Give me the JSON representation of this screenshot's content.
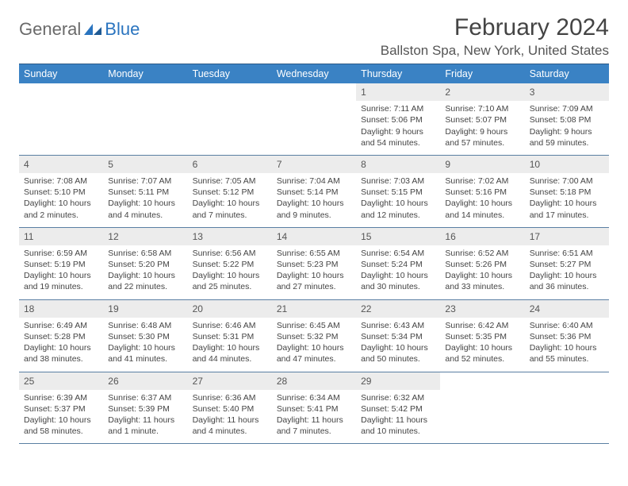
{
  "logo": {
    "text1": "General",
    "text2": "Blue"
  },
  "title": "February 2024",
  "location": "Ballston Spa, New York, United States",
  "colors": {
    "header_bg": "#3a82c4",
    "header_text": "#ffffff",
    "rule": "#2e5b85",
    "daynum_bg": "#ececec",
    "page_bg": "#ffffff",
    "text": "#444444"
  },
  "weekdays": [
    "Sunday",
    "Monday",
    "Tuesday",
    "Wednesday",
    "Thursday",
    "Friday",
    "Saturday"
  ],
  "weeks": [
    {
      "nums": [
        "",
        "",
        "",
        "",
        "1",
        "2",
        "3"
      ],
      "cells": [
        null,
        null,
        null,
        null,
        {
          "sunrise": "7:11 AM",
          "sunset": "5:06 PM",
          "daylight": "9 hours and 54 minutes."
        },
        {
          "sunrise": "7:10 AM",
          "sunset": "5:07 PM",
          "daylight": "9 hours and 57 minutes."
        },
        {
          "sunrise": "7:09 AM",
          "sunset": "5:08 PM",
          "daylight": "9 hours and 59 minutes."
        }
      ]
    },
    {
      "nums": [
        "4",
        "5",
        "6",
        "7",
        "8",
        "9",
        "10"
      ],
      "cells": [
        {
          "sunrise": "7:08 AM",
          "sunset": "5:10 PM",
          "daylight": "10 hours and 2 minutes."
        },
        {
          "sunrise": "7:07 AM",
          "sunset": "5:11 PM",
          "daylight": "10 hours and 4 minutes."
        },
        {
          "sunrise": "7:05 AM",
          "sunset": "5:12 PM",
          "daylight": "10 hours and 7 minutes."
        },
        {
          "sunrise": "7:04 AM",
          "sunset": "5:14 PM",
          "daylight": "10 hours and 9 minutes."
        },
        {
          "sunrise": "7:03 AM",
          "sunset": "5:15 PM",
          "daylight": "10 hours and 12 minutes."
        },
        {
          "sunrise": "7:02 AM",
          "sunset": "5:16 PM",
          "daylight": "10 hours and 14 minutes."
        },
        {
          "sunrise": "7:00 AM",
          "sunset": "5:18 PM",
          "daylight": "10 hours and 17 minutes."
        }
      ]
    },
    {
      "nums": [
        "11",
        "12",
        "13",
        "14",
        "15",
        "16",
        "17"
      ],
      "cells": [
        {
          "sunrise": "6:59 AM",
          "sunset": "5:19 PM",
          "daylight": "10 hours and 19 minutes."
        },
        {
          "sunrise": "6:58 AM",
          "sunset": "5:20 PM",
          "daylight": "10 hours and 22 minutes."
        },
        {
          "sunrise": "6:56 AM",
          "sunset": "5:22 PM",
          "daylight": "10 hours and 25 minutes."
        },
        {
          "sunrise": "6:55 AM",
          "sunset": "5:23 PM",
          "daylight": "10 hours and 27 minutes."
        },
        {
          "sunrise": "6:54 AM",
          "sunset": "5:24 PM",
          "daylight": "10 hours and 30 minutes."
        },
        {
          "sunrise": "6:52 AM",
          "sunset": "5:26 PM",
          "daylight": "10 hours and 33 minutes."
        },
        {
          "sunrise": "6:51 AM",
          "sunset": "5:27 PM",
          "daylight": "10 hours and 36 minutes."
        }
      ]
    },
    {
      "nums": [
        "18",
        "19",
        "20",
        "21",
        "22",
        "23",
        "24"
      ],
      "cells": [
        {
          "sunrise": "6:49 AM",
          "sunset": "5:28 PM",
          "daylight": "10 hours and 38 minutes."
        },
        {
          "sunrise": "6:48 AM",
          "sunset": "5:30 PM",
          "daylight": "10 hours and 41 minutes."
        },
        {
          "sunrise": "6:46 AM",
          "sunset": "5:31 PM",
          "daylight": "10 hours and 44 minutes."
        },
        {
          "sunrise": "6:45 AM",
          "sunset": "5:32 PM",
          "daylight": "10 hours and 47 minutes."
        },
        {
          "sunrise": "6:43 AM",
          "sunset": "5:34 PM",
          "daylight": "10 hours and 50 minutes."
        },
        {
          "sunrise": "6:42 AM",
          "sunset": "5:35 PM",
          "daylight": "10 hours and 52 minutes."
        },
        {
          "sunrise": "6:40 AM",
          "sunset": "5:36 PM",
          "daylight": "10 hours and 55 minutes."
        }
      ]
    },
    {
      "nums": [
        "25",
        "26",
        "27",
        "28",
        "29",
        "",
        ""
      ],
      "cells": [
        {
          "sunrise": "6:39 AM",
          "sunset": "5:37 PM",
          "daylight": "10 hours and 58 minutes."
        },
        {
          "sunrise": "6:37 AM",
          "sunset": "5:39 PM",
          "daylight": "11 hours and 1 minute."
        },
        {
          "sunrise": "6:36 AM",
          "sunset": "5:40 PM",
          "daylight": "11 hours and 4 minutes."
        },
        {
          "sunrise": "6:34 AM",
          "sunset": "5:41 PM",
          "daylight": "11 hours and 7 minutes."
        },
        {
          "sunrise": "6:32 AM",
          "sunset": "5:42 PM",
          "daylight": "11 hours and 10 minutes."
        },
        null,
        null
      ]
    }
  ],
  "labels": {
    "sunrise": "Sunrise:",
    "sunset": "Sunset:",
    "daylight": "Daylight:"
  }
}
